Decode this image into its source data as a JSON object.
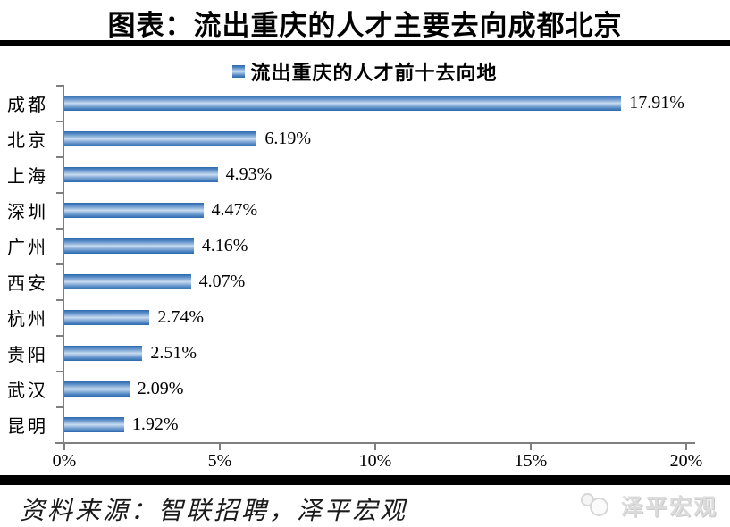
{
  "title": "图表：流出重庆的人才主要去向成都北京",
  "legend": {
    "label": "流出重庆的人才前十去向地"
  },
  "chart_data": {
    "type": "bar",
    "orientation": "horizontal",
    "title": "流出重庆的人才前十去向地",
    "categories": [
      "成都",
      "北京",
      "上海",
      "深圳",
      "广州",
      "西安",
      "杭州",
      "贵阳",
      "武汉",
      "昆明"
    ],
    "values": [
      17.91,
      6.19,
      4.93,
      4.47,
      4.16,
      4.07,
      2.74,
      2.51,
      2.09,
      1.92
    ],
    "value_labels": [
      "17.91%",
      "6.19%",
      "4.93%",
      "4.47%",
      "4.16%",
      "4.07%",
      "2.74%",
      "2.51%",
      "2.09%",
      "1.92%"
    ],
    "x_ticks": [
      "0%",
      "5%",
      "10%",
      "15%",
      "20%"
    ],
    "xlim": [
      0,
      20
    ],
    "xlabel": "",
    "ylabel": "",
    "grid": false,
    "legend_position": "top-center",
    "bar_color_dark": "#2e68ac",
    "bar_color_light": "#cadcf0",
    "axis_color": "#7f7f7f"
  },
  "footer": {
    "source": "资料来源：智联招聘，泽平宏观",
    "logo_text": "泽平宏观"
  }
}
